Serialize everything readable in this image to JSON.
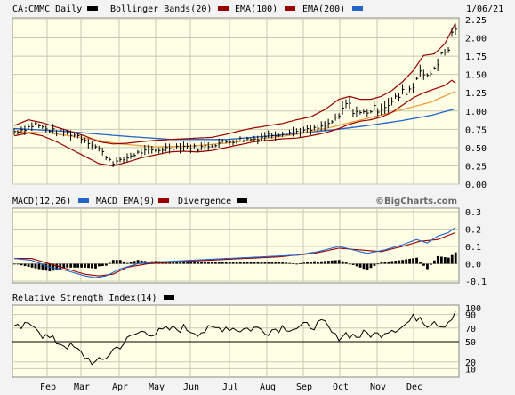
{
  "header": {
    "symbol": "CA:CMMC Daily",
    "date": "1/06/21",
    "legend": [
      {
        "label": "Bollinger Bands(20)",
        "color": "#000000"
      },
      {
        "label": "EMA(100)",
        "color": "#990000"
      },
      {
        "label": "EMA(200)",
        "color": "#e8a040"
      },
      {
        "label": "",
        "color": "#2266cc"
      }
    ]
  },
  "macd_header": {
    "legend": [
      {
        "label": "MACD(12,26)",
        "color": "#2266cc"
      },
      {
        "label": "MACD EMA(9)",
        "color": "#990000"
      },
      {
        "label": "Divergence",
        "color": "#000000"
      }
    ],
    "watermark": "©BigCharts.com"
  },
  "rsi_header": {
    "legend": [
      {
        "label": "Relative Strength Index(14)",
        "color": "#000000"
      }
    ]
  },
  "colors": {
    "panel_bg": "#ffffe6",
    "grid": "#c8c8b4",
    "price": "#000000",
    "bollinger": "#990000",
    "ema100": "#e8a040",
    "ema200": "#2266cc",
    "macd": "#2266cc",
    "macd_signal": "#990000",
    "divergence": "#000000",
    "rsi": "#000000"
  },
  "chart_data": [
    {
      "type": "line",
      "title": "CA:CMMC Daily",
      "x_ticks": [
        "Feb",
        "Mar",
        "Apr",
        "May",
        "Jun",
        "Jul",
        "Aug",
        "Sep",
        "Oct",
        "Nov",
        "Dec"
      ],
      "y_ticks": [
        "0.00",
        "0.25",
        "0.50",
        "0.75",
        "1.00",
        "1.25",
        "1.50",
        "1.75",
        "2.00",
        "2.25"
      ],
      "ylim": [
        0,
        2.25
      ],
      "grid": true,
      "anchors": {
        "price": [
          [
            0,
            0.72
          ],
          [
            3,
            0.76
          ],
          [
            6,
            0.82
          ],
          [
            9,
            0.75
          ],
          [
            12,
            0.72
          ],
          [
            15,
            0.7
          ],
          [
            18,
            0.66
          ],
          [
            21,
            0.58
          ],
          [
            24,
            0.48
          ],
          [
            26,
            0.38
          ],
          [
            28,
            0.3
          ],
          [
            30,
            0.31
          ],
          [
            33,
            0.39
          ],
          [
            36,
            0.44
          ],
          [
            40,
            0.46
          ],
          [
            44,
            0.5
          ],
          [
            48,
            0.52
          ],
          [
            52,
            0.49
          ],
          [
            56,
            0.54
          ],
          [
            60,
            0.58
          ],
          [
            64,
            0.61
          ],
          [
            68,
            0.62
          ],
          [
            72,
            0.67
          ],
          [
            76,
            0.7
          ],
          [
            80,
            0.72
          ],
          [
            84,
            0.74
          ],
          [
            88,
            0.79
          ],
          [
            92,
            0.92
          ],
          [
            94,
            1.1
          ],
          [
            96,
            1.02
          ],
          [
            98,
            0.97
          ],
          [
            101,
            1.0
          ],
          [
            104,
            1.06
          ],
          [
            107,
            1.12
          ],
          [
            110,
            1.25
          ],
          [
            113,
            1.33
          ],
          [
            115,
            1.6
          ],
          [
            116,
            1.5
          ],
          [
            117,
            1.44
          ],
          [
            119,
            1.6
          ],
          [
            121,
            1.75
          ],
          [
            123,
            1.85
          ],
          [
            124,
            2.05
          ],
          [
            125,
            2.15
          ]
        ],
        "bb_upper": [
          [
            0,
            0.8
          ],
          [
            4,
            0.88
          ],
          [
            8,
            0.84
          ],
          [
            12,
            0.78
          ],
          [
            16,
            0.72
          ],
          [
            20,
            0.66
          ],
          [
            24,
            0.58
          ],
          [
            28,
            0.55
          ],
          [
            32,
            0.56
          ],
          [
            36,
            0.58
          ],
          [
            40,
            0.6
          ],
          [
            44,
            0.61
          ],
          [
            48,
            0.62
          ],
          [
            52,
            0.63
          ],
          [
            56,
            0.64
          ],
          [
            60,
            0.68
          ],
          [
            64,
            0.73
          ],
          [
            68,
            0.77
          ],
          [
            72,
            0.8
          ],
          [
            76,
            0.83
          ],
          [
            80,
            0.88
          ],
          [
            84,
            0.92
          ],
          [
            88,
            1.02
          ],
          [
            92,
            1.16
          ],
          [
            95,
            1.2
          ],
          [
            98,
            1.16
          ],
          [
            101,
            1.16
          ],
          [
            104,
            1.2
          ],
          [
            107,
            1.28
          ],
          [
            110,
            1.4
          ],
          [
            113,
            1.55
          ],
          [
            116,
            1.76
          ],
          [
            119,
            1.78
          ],
          [
            122,
            1.92
          ],
          [
            125,
            2.2
          ]
        ],
        "bb_lower": [
          [
            0,
            0.66
          ],
          [
            4,
            0.7
          ],
          [
            8,
            0.66
          ],
          [
            12,
            0.58
          ],
          [
            16,
            0.48
          ],
          [
            20,
            0.38
          ],
          [
            24,
            0.28
          ],
          [
            28,
            0.25
          ],
          [
            32,
            0.3
          ],
          [
            36,
            0.36
          ],
          [
            40,
            0.4
          ],
          [
            44,
            0.44
          ],
          [
            48,
            0.45
          ],
          [
            52,
            0.44
          ],
          [
            56,
            0.46
          ],
          [
            60,
            0.5
          ],
          [
            64,
            0.54
          ],
          [
            68,
            0.58
          ],
          [
            72,
            0.6
          ],
          [
            76,
            0.62
          ],
          [
            80,
            0.63
          ],
          [
            84,
            0.66
          ],
          [
            88,
            0.7
          ],
          [
            92,
            0.76
          ],
          [
            95,
            0.82
          ],
          [
            98,
            0.86
          ],
          [
            101,
            0.88
          ],
          [
            104,
            0.92
          ],
          [
            107,
            0.98
          ],
          [
            110,
            1.08
          ],
          [
            113,
            1.18
          ],
          [
            116,
            1.25
          ],
          [
            119,
            1.3
          ],
          [
            122,
            1.35
          ],
          [
            124,
            1.42
          ],
          [
            125,
            1.38
          ]
        ],
        "ema100": [
          [
            0,
            0.72
          ],
          [
            10,
            0.7
          ],
          [
            20,
            0.63
          ],
          [
            30,
            0.55
          ],
          [
            40,
            0.51
          ],
          [
            50,
            0.52
          ],
          [
            60,
            0.56
          ],
          [
            70,
            0.62
          ],
          [
            80,
            0.68
          ],
          [
            90,
            0.78
          ],
          [
            100,
            0.9
          ],
          [
            110,
            1.02
          ],
          [
            118,
            1.12
          ],
          [
            125,
            1.27
          ]
        ],
        "ema200": [
          [
            0,
            0.76
          ],
          [
            15,
            0.72
          ],
          [
            30,
            0.66
          ],
          [
            45,
            0.61
          ],
          [
            60,
            0.61
          ],
          [
            75,
            0.67
          ],
          [
            90,
            0.74
          ],
          [
            100,
            0.8
          ],
          [
            110,
            0.87
          ],
          [
            118,
            0.94
          ],
          [
            125,
            1.03
          ]
        ]
      }
    },
    {
      "type": "line",
      "title": "MACD(12,26)",
      "y_ticks": [
        "-0.1",
        "0.0",
        "0.1",
        "0.2",
        "0.3"
      ],
      "ylim": [
        -0.1,
        0.3
      ],
      "grid": true,
      "anchors": {
        "macd": [
          [
            0,
            0.03
          ],
          [
            5,
            0.02
          ],
          [
            10,
            -0.02
          ],
          [
            15,
            -0.04
          ],
          [
            20,
            -0.07
          ],
          [
            23,
            -0.08
          ],
          [
            26,
            -0.07
          ],
          [
            30,
            -0.03
          ],
          [
            35,
            0.0
          ],
          [
            40,
            0.01
          ],
          [
            50,
            0.02
          ],
          [
            60,
            0.03
          ],
          [
            70,
            0.04
          ],
          [
            80,
            0.05
          ],
          [
            86,
            0.07
          ],
          [
            92,
            0.1
          ],
          [
            96,
            0.08
          ],
          [
            100,
            0.06
          ],
          [
            105,
            0.08
          ],
          [
            110,
            0.11
          ],
          [
            114,
            0.14
          ],
          [
            117,
            0.12
          ],
          [
            120,
            0.16
          ],
          [
            123,
            0.18
          ],
          [
            125,
            0.21
          ]
        ],
        "signal": [
          [
            0,
            0.03
          ],
          [
            5,
            0.03
          ],
          [
            10,
            0.0
          ],
          [
            15,
            -0.03
          ],
          [
            20,
            -0.06
          ],
          [
            24,
            -0.07
          ],
          [
            28,
            -0.06
          ],
          [
            32,
            -0.02
          ],
          [
            38,
            0.0
          ],
          [
            45,
            0.01
          ],
          [
            55,
            0.02
          ],
          [
            65,
            0.03
          ],
          [
            75,
            0.04
          ],
          [
            85,
            0.06
          ],
          [
            92,
            0.09
          ],
          [
            98,
            0.08
          ],
          [
            104,
            0.07
          ],
          [
            110,
            0.1
          ],
          [
            115,
            0.13
          ],
          [
            120,
            0.14
          ],
          [
            125,
            0.18
          ]
        ]
      }
    },
    {
      "type": "line",
      "title": "Relative Strength Index(14)",
      "y_ticks": [
        "10",
        "20",
        "50",
        "70",
        "90",
        "100"
      ],
      "ylim": [
        0,
        100
      ],
      "grid": true,
      "anchors": {
        "rsi": [
          [
            0,
            68
          ],
          [
            3,
            72
          ],
          [
            6,
            76
          ],
          [
            8,
            60
          ],
          [
            11,
            52
          ],
          [
            14,
            46
          ],
          [
            17,
            40
          ],
          [
            20,
            28
          ],
          [
            23,
            18
          ],
          [
            25,
            22
          ],
          [
            28,
            38
          ],
          [
            31,
            48
          ],
          [
            34,
            60
          ],
          [
            37,
            66
          ],
          [
            40,
            62
          ],
          [
            44,
            68
          ],
          [
            48,
            70
          ],
          [
            52,
            64
          ],
          [
            56,
            68
          ],
          [
            60,
            72
          ],
          [
            64,
            68
          ],
          [
            68,
            70
          ],
          [
            72,
            66
          ],
          [
            76,
            72
          ],
          [
            80,
            70
          ],
          [
            84,
            74
          ],
          [
            88,
            76
          ],
          [
            91,
            56
          ],
          [
            94,
            62
          ],
          [
            97,
            58
          ],
          [
            100,
            62
          ],
          [
            103,
            60
          ],
          [
            106,
            68
          ],
          [
            110,
            72
          ],
          [
            113,
            84
          ],
          [
            115,
            88
          ],
          [
            117,
            76
          ],
          [
            119,
            82
          ],
          [
            121,
            74
          ],
          [
            123,
            80
          ],
          [
            125,
            90
          ]
        ]
      }
    }
  ]
}
